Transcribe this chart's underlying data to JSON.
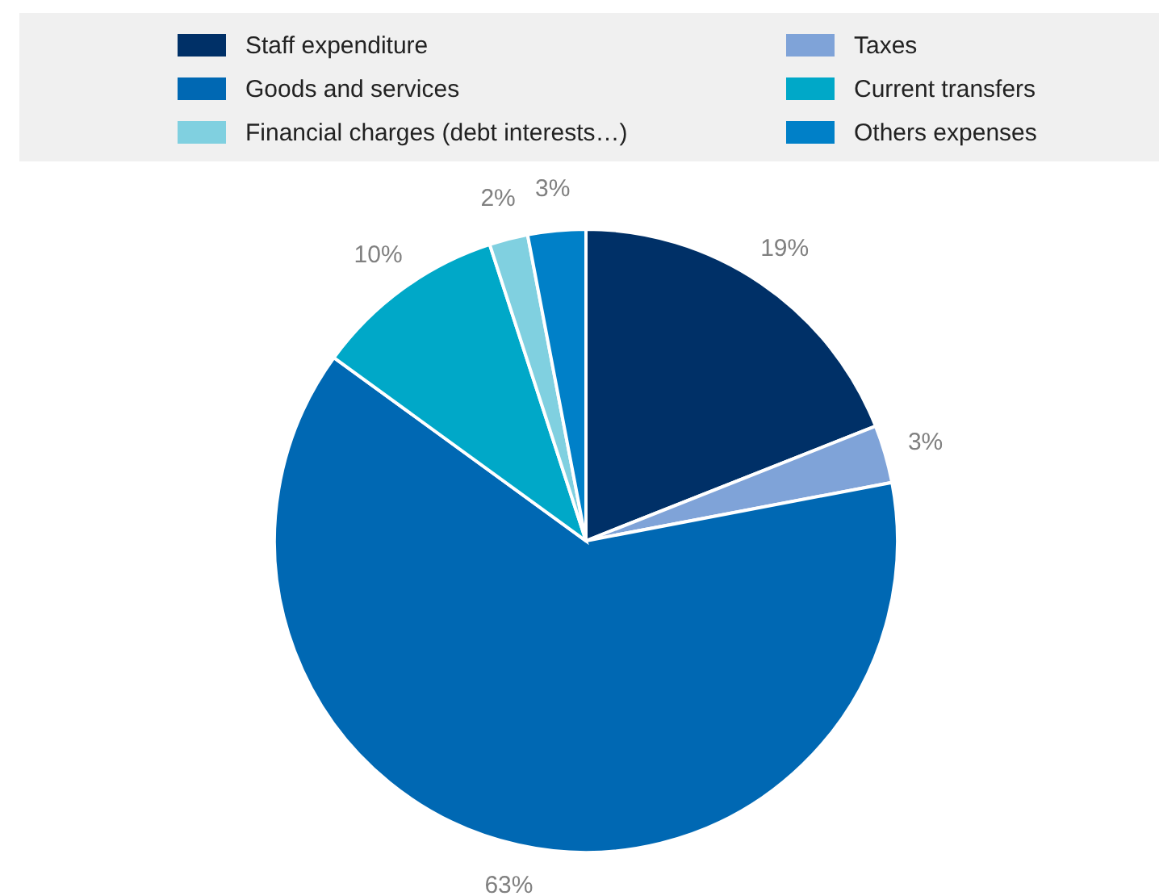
{
  "chart_data": {
    "type": "pie",
    "categories": [
      "Staff expenditure",
      "Taxes",
      "Goods and services",
      "Current transfers",
      "Financial charges (debt interests…)",
      "Others expenses"
    ],
    "values": [
      19,
      3,
      63,
      10,
      2,
      3
    ],
    "value_labels": [
      "19%",
      "3%",
      "63%",
      "10%",
      "2%",
      "3%"
    ],
    "colors": [
      "#003067",
      "#7fa3d8",
      "#0068b3",
      "#00a8c8",
      "#80d0e0",
      "#0080c8"
    ],
    "legend": "top"
  }
}
